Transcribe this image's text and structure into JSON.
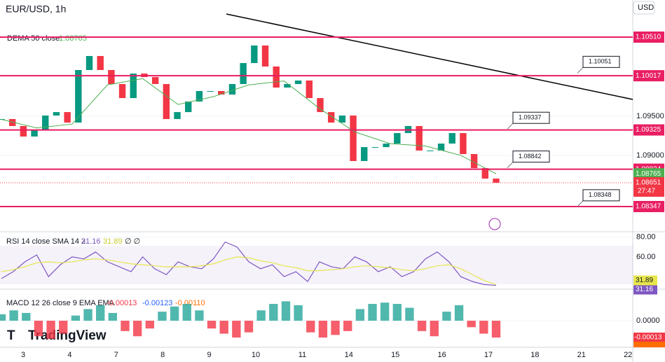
{
  "header": {
    "symbol": "EUR/USD, 1h",
    "currency": "USD",
    "logo": "TradingView"
  },
  "chart_data": [
    {
      "type": "candlestick",
      "legend": "DEMA 50 close",
      "x_labels": [
        "3",
        "4",
        "7",
        "8",
        "9",
        "10",
        "11",
        "14",
        "15",
        "16",
        "17",
        "18",
        "21",
        "22"
      ],
      "series": [
        {
          "color": "#089981",
          "down_color": "#f23645",
          "values": [
            1.09464,
            1.09375,
            1.09241,
            1.0933,
            1.09509,
            1.09553,
            1.09419,
            1.1009,
            1.10269,
            1.1009,
            1.09911,
            1.09732,
            1.10045,
            1.1,
            1.09911,
            1.09464,
            1.09553,
            1.09688,
            1.09822,
            1.09822,
            1.09777,
            1.09911,
            1.10179,
            1.10403,
            1.10135,
            1.09866,
            1.09911,
            1.09956,
            1.09732,
            1.09553,
            1.09419,
            1.09509,
            1.08928,
            1.09106,
            1.09106,
            1.09151,
            1.09285,
            1.09375,
            1.09062,
            1.09062,
            1.09151,
            1.09285,
            1.09017,
            1.08838,
            1.08704,
            1.08651
          ]
        },
        {
          "name": "DEMA 50 close",
          "color": "#4caf50",
          "values": [
            1.0946,
            1.0935,
            1.094,
            1.099,
            1.0998,
            1.0965,
            1.0975,
            1.099,
            1.0995,
            1.096,
            1.093,
            1.0915,
            1.0912,
            1.09,
            1.08765
          ]
        }
      ],
      "levels": [
        {
          "value": 1.1051,
          "label": "1.10510"
        },
        1.10017,
        1.09325,
        1.08824,
        1.08347
      ],
      "level_color": "#e91e63",
      "callouts": [
        1.10051,
        1.09337,
        1.08842,
        1.08348
      ],
      "countdown": "27:47",
      "ylim": [
        1.08034,
        1.10984
      ],
      "yticks": [
        {
          "value": 1.095,
          "label": "1.09500"
        },
        {
          "value": 1.09,
          "label": "1.09000"
        }
      ]
    },
    {
      "type": "line",
      "title": "RSI 14 close SMA 14 2",
      "extra": "∅ ∅",
      "series": [
        {
          "color": "#7e57c2",
          "values": [
            38,
            45,
            55,
            62,
            40,
            52,
            60,
            58,
            65,
            55,
            50,
            45,
            60,
            48,
            42,
            55,
            50,
            48,
            58,
            75,
            70,
            55,
            48,
            52,
            40,
            45,
            35,
            55,
            50,
            48,
            60,
            55,
            45,
            50,
            40,
            45,
            58,
            65,
            55,
            40,
            35,
            32,
            31.16
          ]
        },
        {
          "color": "#e6e64c",
          "values": [
            45,
            47,
            50,
            54,
            55,
            54,
            55,
            57,
            58,
            57,
            55,
            53,
            52,
            51,
            50,
            50,
            50,
            51,
            53,
            57,
            60,
            59,
            56,
            54,
            51,
            49,
            46,
            46,
            47,
            48,
            50,
            51,
            50,
            49,
            47,
            46,
            48,
            51,
            52,
            48,
            42,
            36,
            31.89
          ]
        }
      ],
      "ylim": [
        28,
        84
      ],
      "yticks": [
        {
          "value": 80,
          "label": "80.00"
        },
        {
          "value": 60,
          "label": "60.00"
        }
      ]
    },
    {
      "type": "bar",
      "title": "MACD 12 26 close 9 EMA EMA",
      "series": [
        {
          "color": "#26a69a",
          "down_color": "#f23645",
          "values": [
            5e-05,
            8e-05,
            6e-05,
            -0.00012,
            -0.00014,
            -0.0001,
            4e-05,
            9e-05,
            0.00012,
            6e-05,
            -8e-05,
            -0.00012,
            -6e-05,
            7e-05,
            0.00011,
            0.00013,
            8e-05,
            -6e-05,
            -0.0001,
            -0.00013,
            -9e-05,
            8e-05,
            0.00013,
            0.00015,
            0.00012,
            -9e-05,
            -0.00013,
            -0.00011,
            -8e-05,
            9e-05,
            0.00013,
            0.00014,
            0.00013,
            0.0001,
            -8e-05,
            -0.00012,
            7e-05,
            0.00012,
            -5e-05,
            -0.0001,
            -0.00013
          ]
        }
      ],
      "macd_value": -0.00123,
      "signal_value": -0.0011,
      "value_labels": {
        "signal_value": "-0.00110"
      },
      "ylim": [
        -0.0002,
        0.000233
      ],
      "yticks": [
        {
          "value": 0,
          "label": "0.0000"
        }
      ]
    }
  ]
}
